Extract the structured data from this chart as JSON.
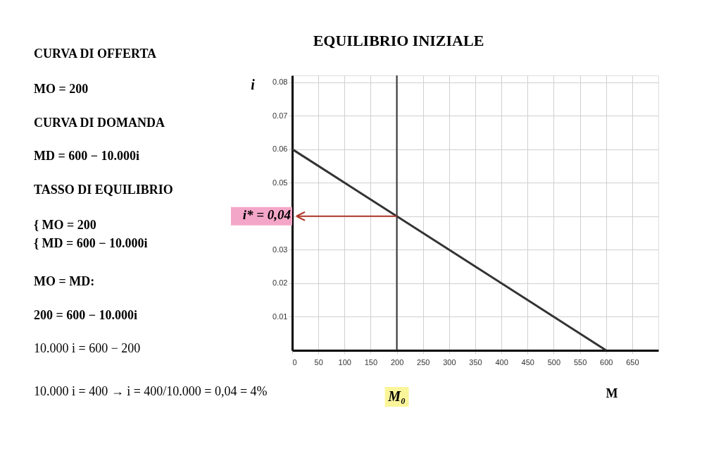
{
  "chart_data": {
    "type": "line",
    "title": "EQUILIBRIO INIZIALE",
    "xlabel": "M",
    "ylabel": "i",
    "series": [
      {
        "name": null,
        "color": "#333333",
        "x": [
          0,
          600
        ],
        "values": [
          0.06,
          0
        ]
      }
    ],
    "xlim": [
      0,
      700
    ],
    "ylim": [
      0,
      0.082
    ],
    "xticks": [
      0,
      50,
      100,
      150,
      200,
      250,
      300,
      350,
      400,
      450,
      500,
      550,
      600,
      650
    ],
    "yticks": [
      0.01,
      0.02,
      0.03,
      {
        "value": 0.04,
        "label": null
      },
      0.05,
      0.06,
      0.07,
      0.08
    ],
    "ref_lines": [
      {
        "axis": "x",
        "value": 200,
        "label": "M₀",
        "color": "#333333"
      },
      {
        "axis": "y",
        "value": 0.04,
        "label": "i* = 0,04",
        "color": "#b03a2e"
      }
    ],
    "annotations": [
      "CURVA DI OFFERTA",
      "MO = 200",
      "CURVA DI DOMANDA",
      "MD = 600 − 10.000i",
      "TASSO DI EQUILIBRIO",
      "{ MO = 200",
      "{ MD = 600 − 10.000i",
      "MO = MD:",
      "200 = 600 − 10.000i",
      "10.000 i = 600 − 200",
      "10.000 i = 400  →  i = 400/10.000 = 0,04 = 4%"
    ],
    "grid": true,
    "marker": "none",
    "line_style": "solid"
  }
}
